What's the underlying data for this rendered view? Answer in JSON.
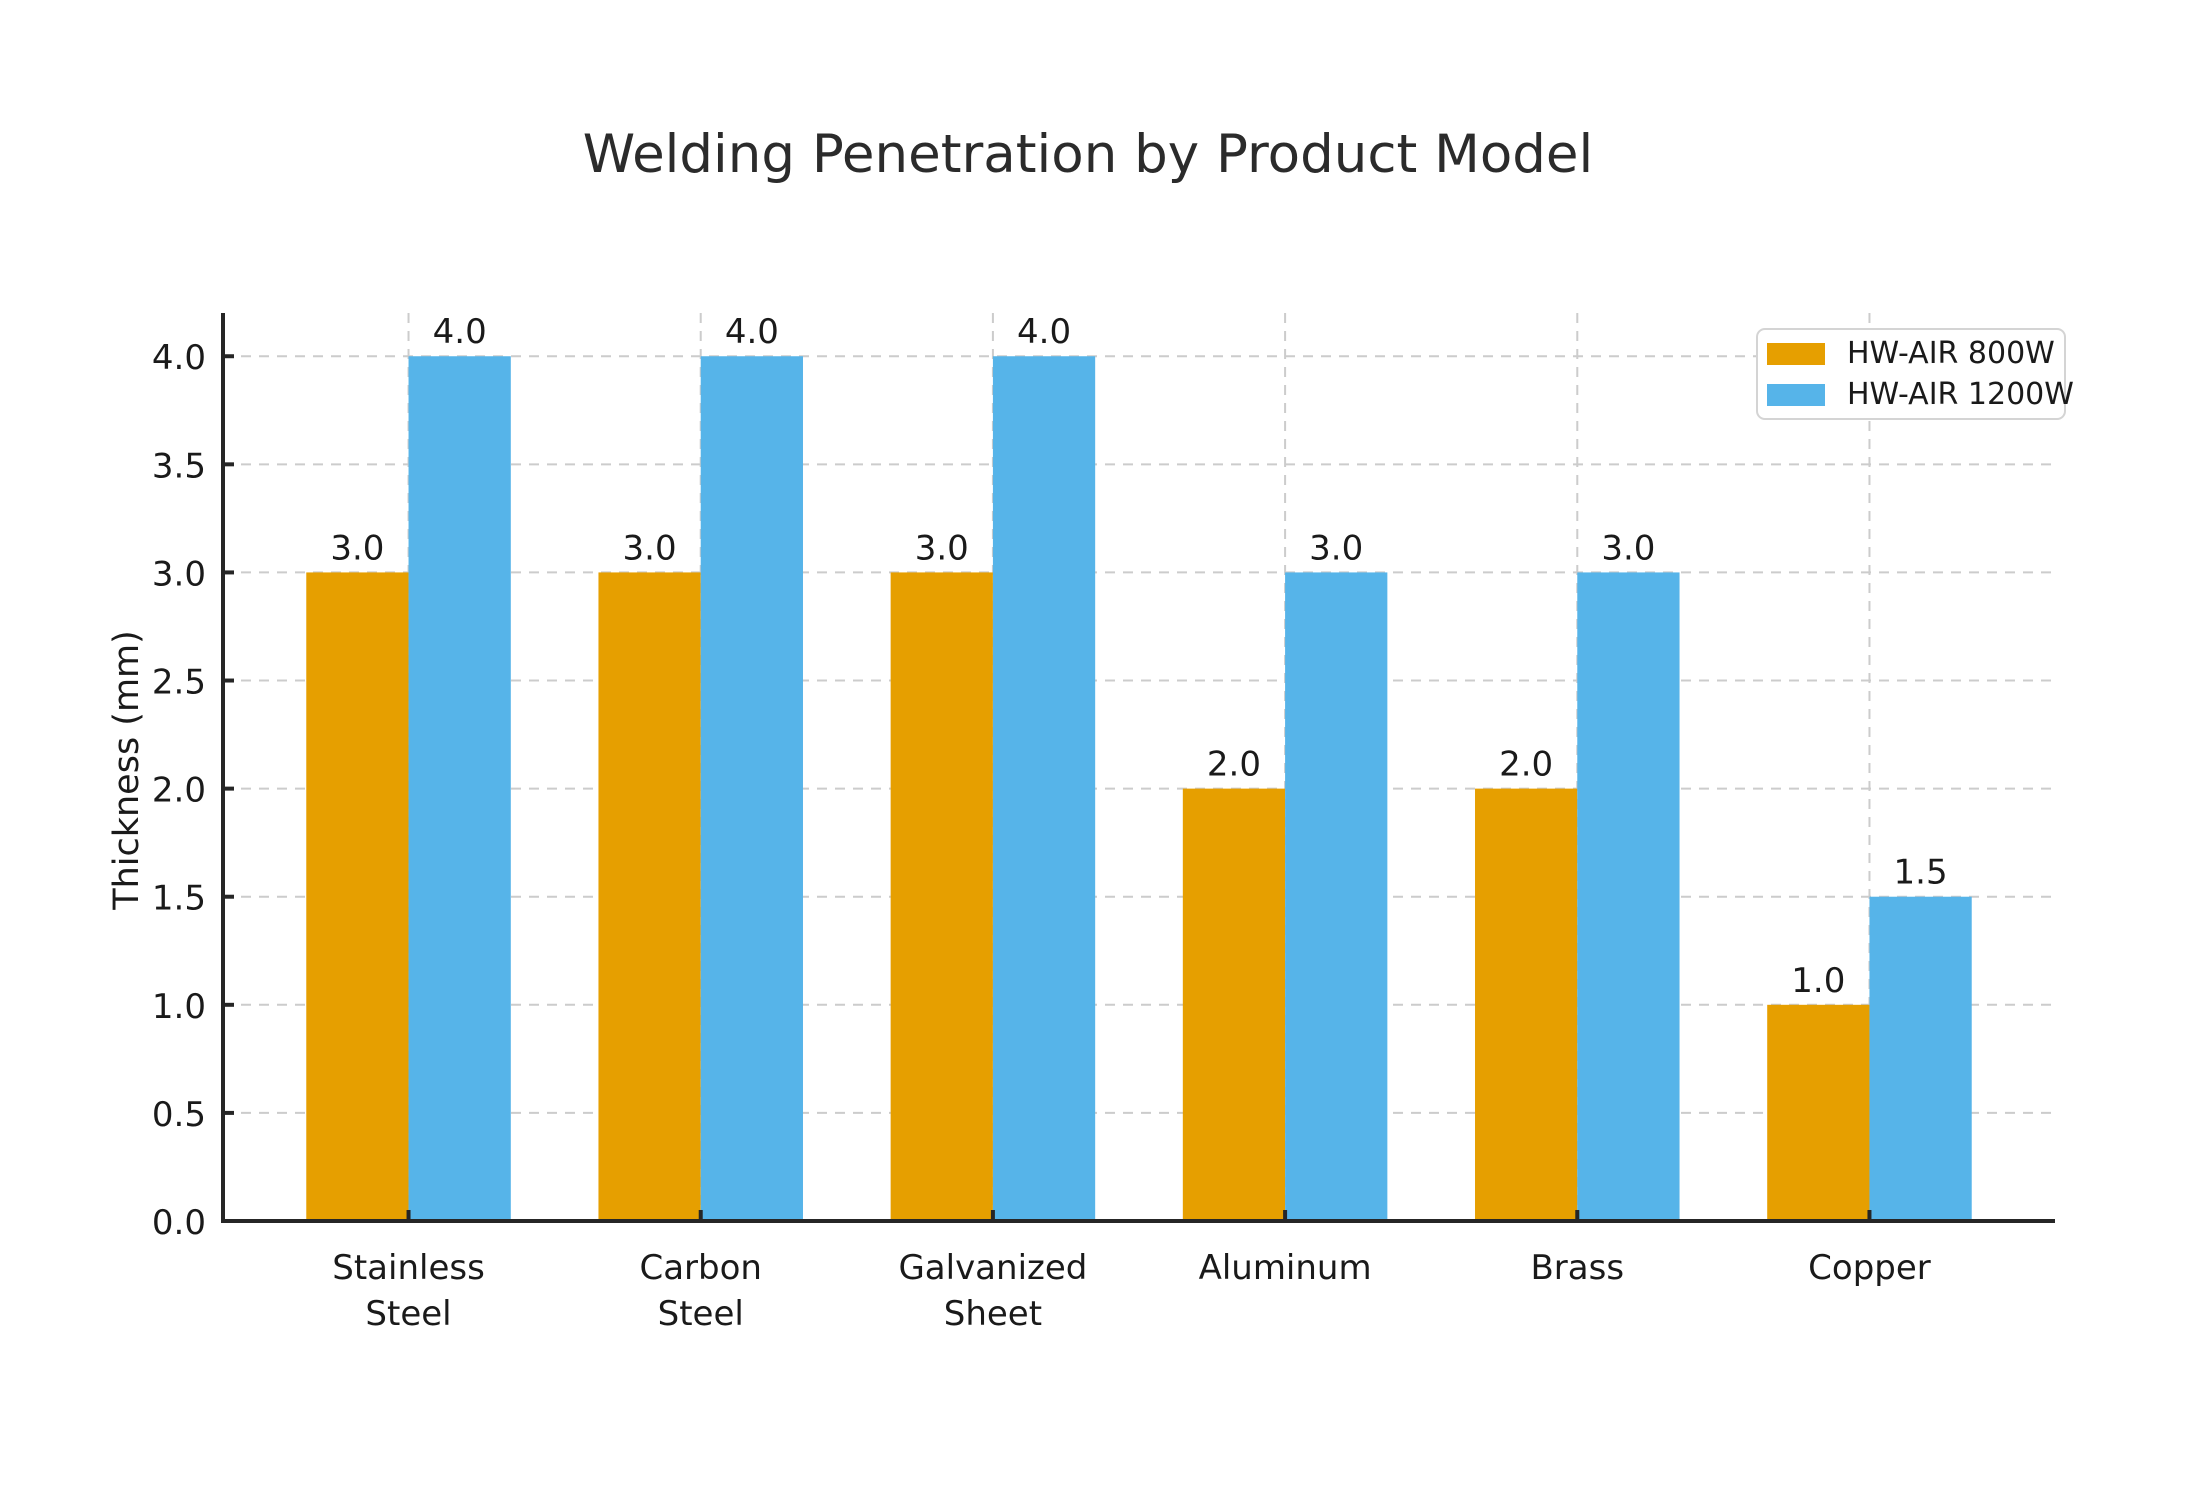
{
  "chart_data": {
    "type": "bar",
    "title": "Welding Penetration by Product Model",
    "xlabel": "",
    "ylabel": "Thickness (mm)",
    "categories": [
      "Stainless\nSteel",
      "Carbon\nSteel",
      "Galvanized\nSheet",
      "Aluminum",
      "Brass",
      "Copper"
    ],
    "series": [
      {
        "name": "HW-AIR 800W",
        "color": "#E69F00",
        "values": [
          3.0,
          3.0,
          3.0,
          2.0,
          2.0,
          1.0
        ]
      },
      {
        "name": "HW-AIR 1200W",
        "color": "#56B4E9",
        "values": [
          4.0,
          4.0,
          4.0,
          3.0,
          3.0,
          1.5
        ]
      }
    ],
    "ylim": [
      0,
      4.2
    ],
    "yticks": [
      0.0,
      0.5,
      1.0,
      1.5,
      2.0,
      2.5,
      3.0,
      3.5,
      4.0
    ],
    "ytick_decimals": 1,
    "bar_value_labels": true,
    "value_label_decimals": 1,
    "grid": {
      "horizontal": true,
      "vertical": true,
      "line_style": "dashed",
      "color": "#cccccc"
    },
    "legend": {
      "position": "upper-right"
    },
    "colors": {
      "axis": "#262626",
      "text": "#1a1a1a",
      "background": "#ffffff"
    }
  }
}
